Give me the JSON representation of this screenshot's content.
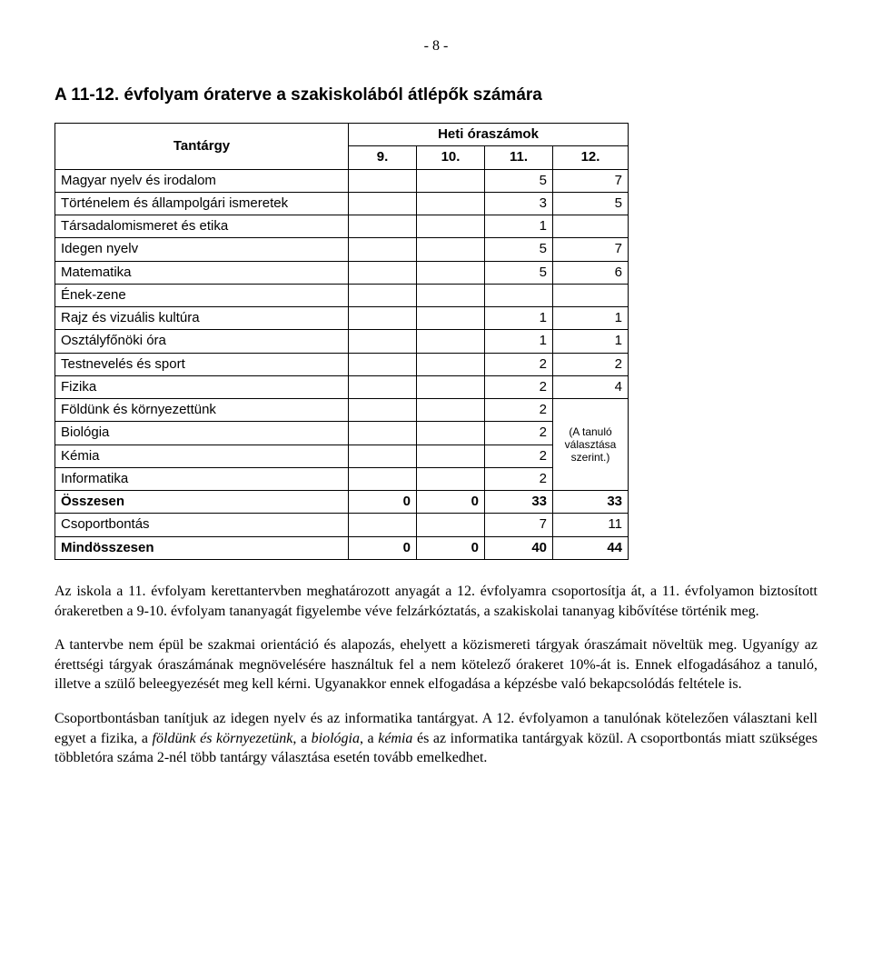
{
  "page_number": "- 8 -",
  "heading": "A 11-12. évfolyam óraterve a szakiskolából átlépők számára",
  "table": {
    "header_subject": "Tantárgy",
    "header_hours": "Heti óraszámok",
    "grades": [
      "9.",
      "10.",
      "11.",
      "12."
    ],
    "note_text": "(A tanuló választása szerint.)",
    "rows": [
      {
        "label": "Magyar nyelv és irodalom",
        "v": [
          "",
          "",
          "5",
          "7"
        ]
      },
      {
        "label": "Történelem és állampolgári ismeretek",
        "v": [
          "",
          "",
          "3",
          "5"
        ]
      },
      {
        "label": "Társadalomismeret és etika",
        "v": [
          "",
          "",
          "1",
          ""
        ]
      },
      {
        "label": "Idegen nyelv",
        "v": [
          "",
          "",
          "5",
          "7"
        ]
      },
      {
        "label": "Matematika",
        "v": [
          "",
          "",
          "5",
          "6"
        ]
      },
      {
        "label": "Ének-zene",
        "v": [
          "",
          "",
          "",
          ""
        ]
      },
      {
        "label": "Rajz és vizuális kultúra",
        "v": [
          "",
          "",
          "1",
          "1"
        ]
      },
      {
        "label": "Osztályfőnöki óra",
        "v": [
          "",
          "",
          "1",
          "1"
        ]
      },
      {
        "label": "Testnevelés és sport",
        "v": [
          "",
          "",
          "2",
          "2"
        ]
      },
      {
        "label": "Fizika",
        "v": [
          "",
          "",
          "2",
          "4"
        ]
      },
      {
        "label": "Földünk és környezettünk",
        "v": [
          "",
          "",
          "2"
        ]
      },
      {
        "label": "Biológia",
        "v": [
          "",
          "",
          "2"
        ]
      },
      {
        "label": "Kémia",
        "v": [
          "",
          "",
          "2"
        ]
      },
      {
        "label": "Informatika",
        "v": [
          "",
          "",
          "2"
        ]
      },
      {
        "label": "Összesen",
        "v": [
          "0",
          "0",
          "33",
          "33"
        ],
        "bold": true
      },
      {
        "label": "Csoportbontás",
        "v": [
          "",
          "",
          "7",
          "11"
        ]
      },
      {
        "label": "Mindösszesen",
        "v": [
          "0",
          "0",
          "40",
          "44"
        ],
        "bold": true
      }
    ]
  },
  "para1": "Az iskola a 11. évfolyam kerettantervben meghatározott anyagát a 12. évfolyamra csoportosítja át, a 11. évfolyamon biztosított órakeretben a 9-10. évfolyam tananyagát figyelembe véve felzárkóztatás, a szakiskolai tananyag kibővítése történik meg.",
  "para2": "A tantervbe nem épül be szakmai orientáció és alapozás, ehelyett a közismereti tárgyak óraszámait növeltük meg. Ugyanígy az érettségi tárgyak óraszámának megnövelésére használtuk fel a nem kötelező órakeret 10%-át is. Ennek elfogadásához a tanuló, illetve a szülő beleegyezését meg kell kérni. Ugyanakkor ennek elfogadása a képzésbe való bekapcsolódás feltétele is.",
  "para3_a": "Csoportbontásban tanítjuk az idegen nyelv és az informatika tantárgyat. A 12. évfolyamon a tanulónak kötelezően választani kell egyet a fizika, a ",
  "para3_i1": "földünk és környezetünk",
  "para3_b": ", a ",
  "para3_i2": "biológia",
  "para3_c": ", a ",
  "para3_i3": "kémia",
  "para3_d": " és az informatika tantárgyak közül. A csoportbontás miatt szükséges többletóra száma 2-nél több tantárgy választása esetén tovább emelkedhet."
}
